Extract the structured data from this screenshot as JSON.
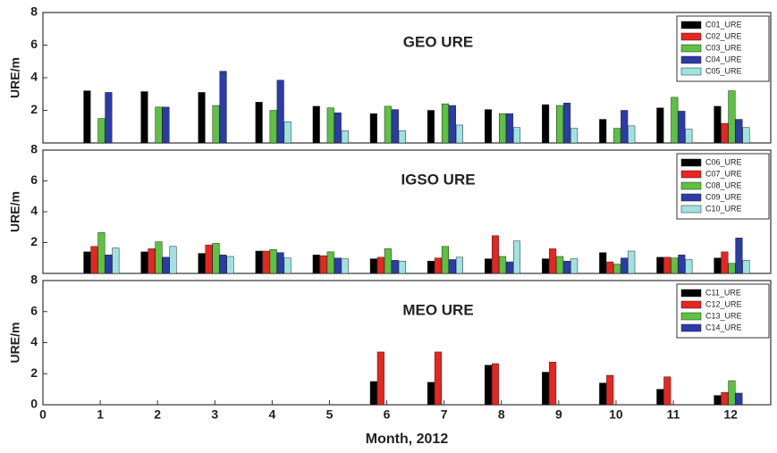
{
  "chart_data": [
    {
      "type": "bar",
      "title": "GEO URE",
      "ylabel": "URE/m",
      "x": [
        1,
        2,
        3,
        4,
        5,
        6,
        7,
        8,
        9,
        10,
        11,
        12
      ],
      "xlim": [
        0,
        12.7
      ],
      "ylim": [
        0,
        8
      ],
      "yticks": [
        2,
        4,
        6,
        8
      ],
      "series": [
        {
          "name": "C01_URE",
          "color": "#000000",
          "values": [
            3.2,
            3.15,
            3.1,
            2.5,
            2.25,
            1.8,
            2.0,
            2.05,
            2.35,
            1.45,
            2.15,
            2.25
          ]
        },
        {
          "name": "C02_URE",
          "color": "#e8251f",
          "values": [
            null,
            null,
            null,
            null,
            null,
            null,
            null,
            null,
            null,
            null,
            null,
            1.2
          ]
        },
        {
          "name": "C03_URE",
          "color": "#5cc240",
          "values": [
            1.5,
            2.2,
            2.3,
            2.0,
            2.15,
            2.25,
            2.4,
            1.8,
            2.3,
            0.9,
            2.8,
            3.2
          ]
        },
        {
          "name": "C04_URE",
          "color": "#2b3ba8",
          "values": [
            3.1,
            2.2,
            4.4,
            3.85,
            1.85,
            2.05,
            2.3,
            1.8,
            2.45,
            2.0,
            1.95,
            1.45
          ]
        },
        {
          "name": "C05_URE",
          "color": "#9fe3e0",
          "values": [
            null,
            null,
            null,
            1.3,
            0.75,
            0.75,
            1.1,
            0.95,
            0.9,
            1.05,
            0.85,
            0.95
          ]
        }
      ]
    },
    {
      "type": "bar",
      "title": "IGSO URE",
      "ylabel": "URE/m",
      "x": [
        1,
        2,
        3,
        4,
        5,
        6,
        7,
        8,
        9,
        10,
        11,
        12
      ],
      "xlim": [
        0,
        12.7
      ],
      "ylim": [
        0,
        8
      ],
      "yticks": [
        2,
        4,
        6,
        8
      ],
      "series": [
        {
          "name": "C06_URE",
          "color": "#000000",
          "values": [
            1.4,
            1.4,
            1.3,
            1.45,
            1.2,
            0.95,
            0.8,
            0.95,
            0.95,
            1.35,
            1.05,
            1.0
          ]
        },
        {
          "name": "C07_URE",
          "color": "#e8251f",
          "values": [
            1.75,
            1.6,
            1.85,
            1.45,
            1.15,
            1.05,
            1.0,
            2.45,
            1.6,
            0.75,
            1.05,
            1.4
          ]
        },
        {
          "name": "C08_URE",
          "color": "#5cc240",
          "values": [
            2.65,
            2.05,
            1.95,
            1.55,
            1.4,
            1.6,
            1.75,
            1.1,
            1.1,
            0.6,
            1.0,
            0.65
          ]
        },
        {
          "name": "C09_URE",
          "color": "#2b3ba8",
          "values": [
            1.2,
            1.05,
            1.2,
            1.35,
            1.0,
            0.85,
            0.9,
            0.75,
            0.8,
            1.0,
            1.2,
            2.3
          ]
        },
        {
          "name": "C10_URE",
          "color": "#9fe3e0",
          "values": [
            1.65,
            1.75,
            1.1,
            1.0,
            0.95,
            0.8,
            1.05,
            2.1,
            0.95,
            1.45,
            0.9,
            0.85
          ]
        }
      ]
    },
    {
      "type": "bar",
      "title": "MEO URE",
      "ylabel": "URE/m",
      "xlabel": "Month, 2012",
      "x": [
        1,
        2,
        3,
        4,
        5,
        6,
        7,
        8,
        9,
        10,
        11,
        12
      ],
      "xlim": [
        0,
        12.7
      ],
      "xticks": [
        0,
        1,
        2,
        3,
        4,
        5,
        6,
        7,
        8,
        9,
        10,
        11,
        12
      ],
      "ylim": [
        0,
        8
      ],
      "yticks": [
        0,
        2,
        4,
        6,
        8
      ],
      "series": [
        {
          "name": "C11_URE",
          "color": "#000000",
          "values": [
            null,
            null,
            null,
            null,
            null,
            1.5,
            1.45,
            2.55,
            2.1,
            1.4,
            1.0,
            0.6
          ]
        },
        {
          "name": "C12_URE",
          "color": "#e8251f",
          "values": [
            null,
            null,
            null,
            null,
            null,
            3.4,
            3.4,
            2.65,
            2.75,
            1.9,
            1.8,
            0.8
          ]
        },
        {
          "name": "C13_URE",
          "color": "#5cc240",
          "values": [
            null,
            null,
            null,
            null,
            null,
            null,
            null,
            null,
            null,
            null,
            null,
            1.55
          ]
        },
        {
          "name": "C14_URE",
          "color": "#2b3ba8",
          "values": [
            null,
            null,
            null,
            null,
            null,
            null,
            null,
            null,
            null,
            null,
            null,
            0.75
          ]
        }
      ]
    }
  ]
}
